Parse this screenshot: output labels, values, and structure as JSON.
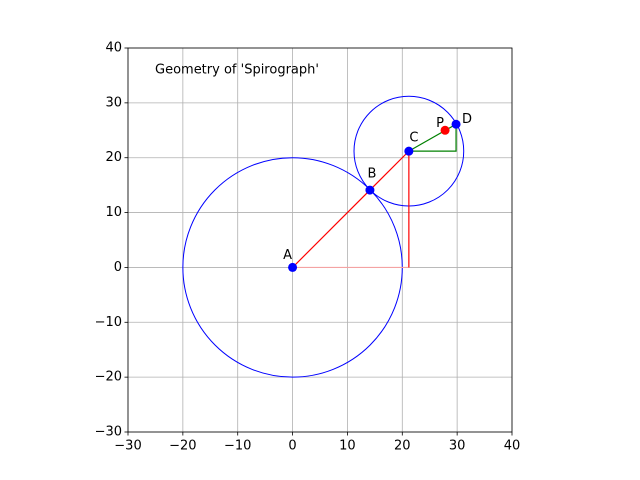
{
  "chart_data": {
    "type": "geometry",
    "title": "Geometry of 'Spirograph'",
    "xlim": [
      -30,
      40
    ],
    "ylim": [
      -30,
      40
    ],
    "xticks": [
      {
        "value": -30,
        "label": "−30"
      },
      {
        "value": -20,
        "label": "−20"
      },
      {
        "value": -10,
        "label": "−10"
      },
      0,
      10,
      20,
      30,
      40
    ],
    "yticks": [
      {
        "value": -30,
        "label": "−30"
      },
      {
        "value": -20,
        "label": "−20"
      },
      {
        "value": -10,
        "label": "−10"
      },
      0,
      10,
      20,
      30,
      40
    ],
    "grid": true,
    "circles": [
      {
        "cx": 0,
        "cy": 0,
        "r": 20,
        "color": "#0000ff"
      },
      {
        "cx": 21.2,
        "cy": 21.2,
        "r": 10,
        "color": "#0000ff"
      }
    ],
    "segments": [
      {
        "x": [
          0,
          21.2
        ],
        "y": [
          0,
          21.2
        ],
        "color": "#ff0000"
      },
      {
        "x": [
          0,
          21.2
        ],
        "y": [
          0,
          0
        ],
        "color": "#f4a3a3"
      },
      {
        "x": [
          21.2,
          21.2
        ],
        "y": [
          0,
          21.2
        ],
        "color": "#ff0000"
      },
      {
        "x": [
          21.2,
          29.8,
          29.8
        ],
        "y": [
          21.2,
          21.2,
          26.1
        ],
        "color": "#008000"
      },
      {
        "x": [
          21.2,
          29.8
        ],
        "y": [
          21.2,
          26.1
        ],
        "color": "#008000"
      }
    ],
    "points": [
      {
        "label": "A",
        "x": 0,
        "y": 0,
        "color": "#0000ff"
      },
      {
        "label": "B",
        "x": 14.1,
        "y": 14.1,
        "color": "#0000ff"
      },
      {
        "label": "C",
        "x": 21.2,
        "y": 21.2,
        "color": "#0000ff"
      },
      {
        "label": "D",
        "x": 29.8,
        "y": 26.1,
        "color": "#0000ff"
      },
      {
        "label": "P",
        "x": 27.8,
        "y": 25.0,
        "color": "#ff0000"
      }
    ]
  }
}
